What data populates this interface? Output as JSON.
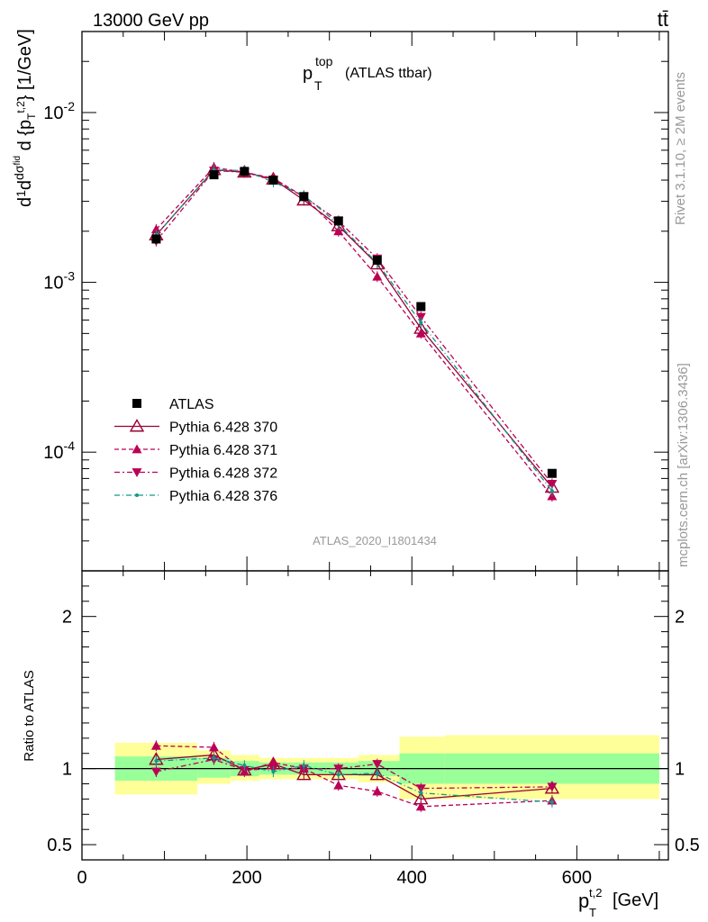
{
  "header": {
    "left": "13000 GeV pp",
    "right": "tt̄"
  },
  "title": {
    "main": "p",
    "sup": "top",
    "sub": "T",
    "rest": "(ATLAS ttbar)"
  },
  "side_labels": {
    "rivet": "Rivet 3.1.10, ≥ 2M events",
    "mcplots": "mcplots.cern.ch [arXiv:1306.3436]"
  },
  "analysis_id": "ATLAS_2020_I1801434",
  "ylabel_top": "dσ/d{p_T^{t,2}} [1/GeV]",
  "ylabel_ratio": "Ratio to ATLAS",
  "xlabel": "p_T^{t,2} [GeV]",
  "colors": {
    "data": "#000000",
    "p370": "#990033",
    "p371": "#bb0055",
    "p372": "#bb0055",
    "p376": "#119988",
    "band_inner": "#99ff99",
    "band_outer": "#ffff99"
  },
  "chart_data": [
    {
      "type": "scatter",
      "panel": "main",
      "yscale": "log",
      "xlim": [
        0,
        711
      ],
      "ylim": [
        2e-05,
        0.03
      ],
      "x_ticks": [
        "0",
        "200",
        "400",
        "600"
      ],
      "y_ticks": [
        "10^-4",
        "10^-3",
        "10^-2"
      ],
      "legend_position": "bottom-left",
      "x": [
        90,
        160,
        197,
        232,
        269,
        311,
        358,
        411,
        570
      ],
      "series": [
        {
          "name": "ATLAS",
          "style": "data",
          "values": [
            0.0018,
            0.0043,
            0.0045,
            0.004,
            0.0032,
            0.0023,
            0.00135,
            0.00072,
            7.5e-05
          ]
        },
        {
          "name": "Pythia 6.428 370",
          "style": "p370",
          "values": [
            0.0019,
            0.0046,
            0.00445,
            0.00405,
            0.00305,
            0.00215,
            0.00128,
            0.000535,
            6.2e-05
          ]
        },
        {
          "name": "Pythia 6.428 371",
          "style": "p371",
          "values": [
            0.00205,
            0.00475,
            0.00445,
            0.0041,
            0.0032,
            0.002,
            0.00108,
            0.0005,
            5.5e-05
          ]
        },
        {
          "name": "Pythia 6.428 372",
          "style": "p372",
          "values": [
            0.00175,
            0.00455,
            0.00445,
            0.004,
            0.0032,
            0.0023,
            0.00138,
            0.000625,
            6.5e-05
          ]
        },
        {
          "name": "Pythia 6.428 376",
          "style": "p376",
          "values": [
            0.0019,
            0.0046,
            0.00455,
            0.0039,
            0.00325,
            0.0022,
            0.0013,
            0.00058,
            5.9e-05
          ]
        }
      ]
    },
    {
      "type": "scatter",
      "panel": "ratio",
      "ylabel": "Ratio to ATLAS",
      "ylim": [
        0.4,
        2.3
      ],
      "y_ticks": [
        "0.5",
        "1",
        "2"
      ],
      "x": [
        90,
        160,
        197,
        232,
        269,
        311,
        358,
        411,
        570
      ],
      "bands": {
        "edges": [
          40,
          140,
          180,
          215,
          250,
          290,
          335,
          385,
          440,
          700
        ],
        "inner_lo": [
          0.92,
          0.94,
          0.95,
          0.96,
          0.96,
          0.96,
          0.95,
          0.9,
          0.9
        ],
        "inner_hi": [
          1.08,
          1.07,
          1.05,
          1.04,
          1.04,
          1.04,
          1.05,
          1.1,
          1.1
        ],
        "outer_lo": [
          0.83,
          0.9,
          0.92,
          0.93,
          0.93,
          0.93,
          0.91,
          0.8,
          0.8
        ],
        "outer_hi": [
          1.17,
          1.12,
          1.09,
          1.07,
          1.07,
          1.07,
          1.09,
          1.21,
          1.22
        ]
      },
      "series": [
        {
          "name": "Pythia 6.428 370",
          "style": "p370",
          "values": [
            1.06,
            1.09,
            0.99,
            1.03,
            0.96,
            0.96,
            0.96,
            0.8,
            0.87
          ]
        },
        {
          "name": "Pythia 6.428 371",
          "style": "p371",
          "values": [
            1.15,
            1.14,
            0.98,
            1.04,
            1.0,
            0.89,
            0.85,
            0.75,
            0.79
          ]
        },
        {
          "name": "Pythia 6.428 372",
          "style": "p372",
          "values": [
            0.98,
            1.06,
            0.99,
            1.0,
            1.0,
            1.0,
            1.03,
            0.87,
            0.88
          ]
        },
        {
          "name": "Pythia 6.428 376",
          "style": "p376",
          "values": [
            1.05,
            1.07,
            1.02,
            0.98,
            1.02,
            0.96,
            0.97,
            0.84,
            0.78
          ]
        }
      ]
    }
  ]
}
